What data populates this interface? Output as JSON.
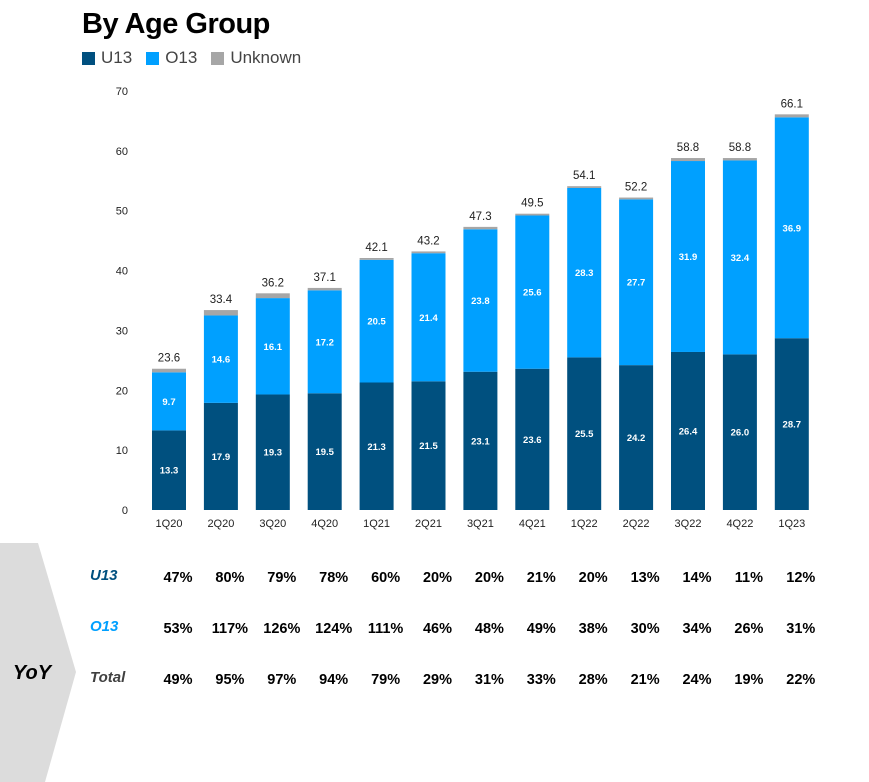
{
  "chart_data": {
    "type": "bar",
    "stacked": true,
    "title": "By Age Group",
    "categories": [
      "1Q20",
      "2Q20",
      "3Q20",
      "4Q20",
      "1Q21",
      "2Q21",
      "3Q21",
      "4Q21",
      "1Q22",
      "2Q22",
      "3Q22",
      "4Q22",
      "1Q23"
    ],
    "series": [
      {
        "name": "U13",
        "color": "#00507f",
        "values": [
          13.3,
          17.9,
          19.3,
          19.5,
          21.3,
          21.5,
          23.1,
          23.6,
          25.5,
          24.2,
          26.4,
          26.0,
          28.7
        ]
      },
      {
        "name": "O13",
        "color": "#00a0ff",
        "values": [
          9.7,
          14.6,
          16.1,
          17.2,
          20.5,
          21.4,
          23.8,
          25.6,
          28.3,
          27.7,
          31.9,
          32.4,
          36.9
        ]
      },
      {
        "name": "Unknown",
        "color": "#a6a6a6",
        "values": [
          0.6,
          0.9,
          0.8,
          0.4,
          0.3,
          0.3,
          0.4,
          0.3,
          0.3,
          0.3,
          0.5,
          0.4,
          0.5
        ]
      }
    ],
    "totals": [
      23.6,
      33.4,
      36.2,
      37.1,
      42.1,
      43.2,
      47.3,
      49.5,
      54.1,
      52.2,
      58.8,
      58.8,
      66.1
    ],
    "yticks": [
      0,
      10,
      20,
      30,
      40,
      50,
      60,
      70
    ],
    "ylim": [
      0,
      70
    ],
    "legend": "top-left",
    "grid": false
  },
  "yoy": {
    "label": "YoY",
    "rows": [
      {
        "label": "U13",
        "color": "#00507f",
        "values": [
          "47%",
          "80%",
          "79%",
          "78%",
          "60%",
          "20%",
          "20%",
          "21%",
          "20%",
          "13%",
          "14%",
          "11%",
          "12%"
        ]
      },
      {
        "label": "O13",
        "color": "#00a0ff",
        "values": [
          "53%",
          "117%",
          "126%",
          "124%",
          "111%",
          "46%",
          "48%",
          "49%",
          "38%",
          "30%",
          "34%",
          "26%",
          "31%"
        ]
      },
      {
        "label": "Total",
        "color": "#404040",
        "values": [
          "49%",
          "95%",
          "97%",
          "94%",
          "79%",
          "29%",
          "31%",
          "33%",
          "28%",
          "21%",
          "24%",
          "19%",
          "22%"
        ]
      }
    ]
  }
}
